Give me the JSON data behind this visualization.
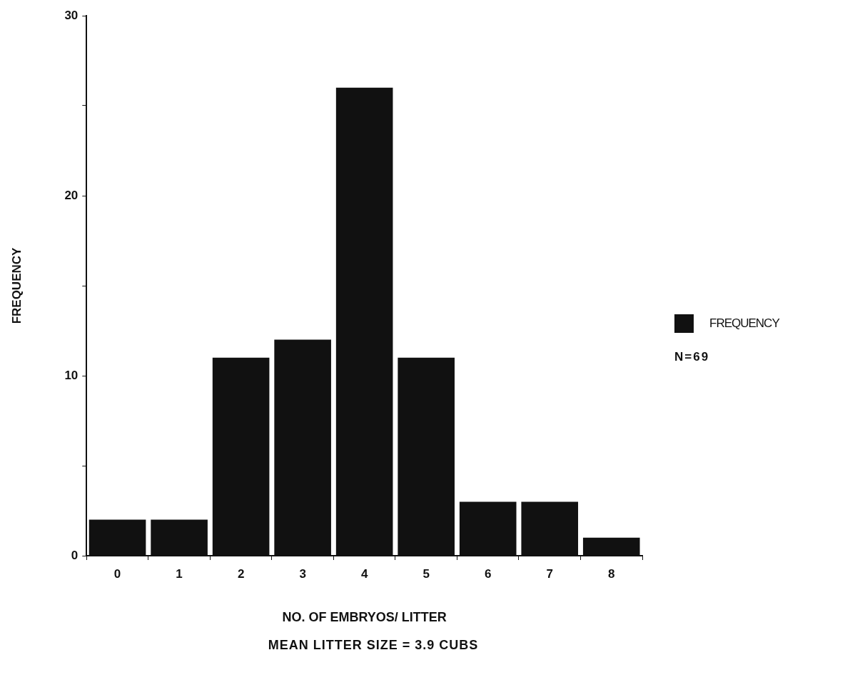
{
  "chart_data": {
    "type": "bar",
    "xlabel": "NO. OF EMBRYOS/ LITTER",
    "ylabel": "FREQUENCY",
    "categories": [
      "0",
      "1",
      "2",
      "3",
      "4",
      "5",
      "6",
      "7",
      "8"
    ],
    "series": [
      {
        "name": "FREQUENCY",
        "color": "#111111",
        "values": [
          2,
          2,
          11,
          12,
          26,
          11,
          3,
          3,
          1
        ]
      }
    ],
    "ylim": [
      0,
      30
    ],
    "yticks": [
      0,
      {
        "value": 5,
        "label": null
      },
      10,
      {
        "value": 15,
        "label": null
      },
      20,
      {
        "value": 25,
        "label": null
      },
      30
    ],
    "legend": "right",
    "annotations": [
      "N=69",
      "MEAN LITTER SIZE = 3.9 CUBS"
    ]
  }
}
